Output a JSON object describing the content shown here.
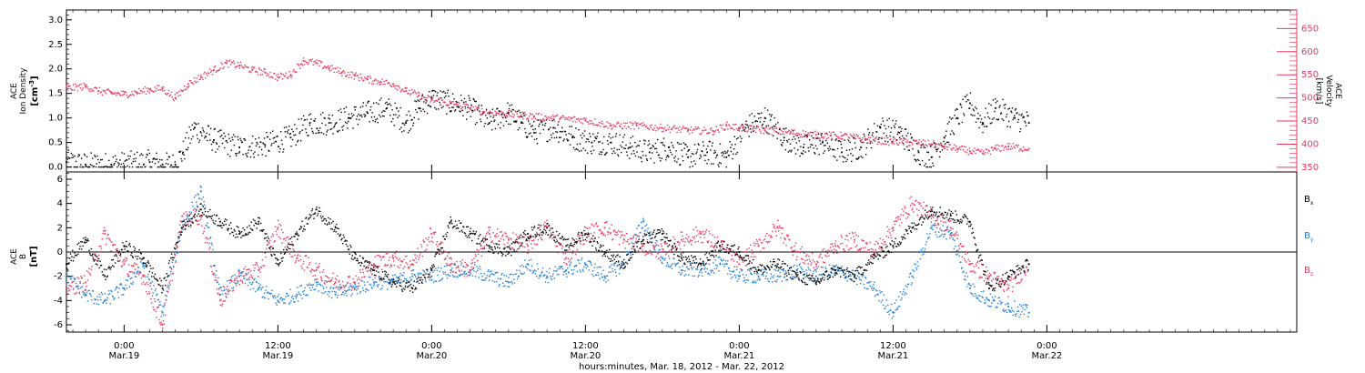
{
  "colors": {
    "axis": "#000000",
    "density": "#000000",
    "velocity": "#e8385f",
    "bx": "#000000",
    "by": "#1f7fd8",
    "bz": "#e8385f"
  },
  "footer": {
    "xlabel": "hours:minutes, Mar. 18, 2012 - Mar. 22, 2012"
  },
  "chart_data": [
    {
      "type": "scatter",
      "panel": "top",
      "x_unit": "hours since 2012-03-18 00:00",
      "xlim": [
        19.5,
        115.5
      ],
      "x_ticks": [
        {
          "x": 24,
          "time": "0:00",
          "date": "Mar.19"
        },
        {
          "x": 36,
          "time": "12:00",
          "date": "Mar.19"
        },
        {
          "x": 48,
          "time": "0:00",
          "date": "Mar.20"
        },
        {
          "x": 60,
          "time": "12:00",
          "date": "Mar.20"
        },
        {
          "x": 72,
          "time": "0:00",
          "date": "Mar.21"
        },
        {
          "x": 84,
          "time": "12:00",
          "date": "Mar.21"
        },
        {
          "x": 96,
          "time": "0:00",
          "date": "Mar.22"
        }
      ],
      "y_left": {
        "label_lines": [
          "ACE",
          "Ion Density"
        ],
        "unit_label": "[cm",
        "unit_sup": "-3",
        "unit_tail": "]",
        "ylim": [
          -0.1,
          3.2
        ],
        "ticks": [
          "0.0",
          "0.5",
          "1.0",
          "1.5",
          "2.0",
          "2.5",
          "3.0"
        ]
      },
      "y_right": {
        "label_lines": [
          "ACE",
          "Velocity",
          "[km/s]"
        ],
        "ylim": [
          340,
          690
        ],
        "ticks": [
          "350",
          "400",
          "450",
          "500",
          "550",
          "600",
          "650"
        ]
      },
      "series": [
        {
          "key": "density",
          "axis": "left",
          "x": [
            19.5,
            21,
            23,
            26,
            27,
            28,
            28.6,
            29.5,
            31,
            33,
            35,
            37,
            38.5,
            40,
            41.5,
            43,
            44.5,
            46,
            47,
            48,
            49.5,
            51,
            52.5,
            54,
            55,
            56,
            57.5,
            59,
            60.5,
            62,
            63.5,
            65,
            66.5,
            68,
            69.5,
            71,
            72.5,
            74,
            75.5,
            77,
            78.5,
            80,
            81.5,
            83,
            84.5,
            86,
            87,
            88,
            89,
            90,
            91,
            92,
            93.5,
            94.6
          ],
          "y": [
            0.1,
            0.05,
            0.05,
            0.1,
            0.05,
            0.05,
            0.3,
            0.8,
            0.55,
            0.4,
            0.45,
            0.6,
            0.9,
            0.9,
            1.0,
            1.1,
            1.2,
            0.9,
            1.2,
            1.4,
            1.3,
            1.2,
            0.9,
            1.1,
            0.9,
            0.7,
            0.8,
            0.6,
            0.5,
            0.5,
            0.4,
            0.3,
            0.4,
            0.2,
            0.3,
            0.2,
            0.8,
            1.0,
            0.6,
            0.4,
            0.5,
            0.3,
            0.4,
            0.8,
            0.7,
            0.3,
            0.2,
            0.6,
            1.0,
            1.3,
            0.9,
            1.2,
            1.0,
            0.9
          ]
        },
        {
          "key": "velocity",
          "axis": "right",
          "x": [
            19.5,
            21,
            22,
            23,
            24,
            25,
            26,
            27,
            28,
            29,
            30,
            31,
            32,
            33,
            34,
            35,
            36,
            37,
            38,
            39,
            40,
            41,
            42,
            43,
            44,
            45,
            46,
            47,
            48,
            50,
            52,
            54,
            56,
            58,
            60,
            62,
            64,
            66,
            68,
            70,
            71,
            72,
            74,
            76,
            78,
            80,
            82,
            84,
            86,
            87,
            88,
            89,
            90,
            91,
            92,
            93,
            94.6
          ],
          "y": [
            520,
            525,
            515,
            510,
            508,
            512,
            518,
            520,
            500,
            530,
            545,
            560,
            575,
            570,
            560,
            555,
            545,
            550,
            580,
            575,
            565,
            555,
            548,
            540,
            535,
            530,
            515,
            505,
            495,
            485,
            470,
            465,
            460,
            455,
            452,
            440,
            440,
            435,
            430,
            428,
            440,
            435,
            430,
            425,
            420,
            418,
            410,
            405,
            403,
            400,
            395,
            390,
            385,
            380,
            390,
            395,
            390
          ]
        }
      ]
    },
    {
      "type": "scatter",
      "panel": "bottom",
      "x_unit": "hours since 2012-03-18 00:00",
      "xlim": [
        19.5,
        115.5
      ],
      "y_left": {
        "label_lines": [
          "ACE",
          "B"
        ],
        "unit_label": "[nT]",
        "ylim": [
          -6.6,
          6.6
        ],
        "ticks": [
          "-6",
          "-4",
          "-2",
          "0",
          "2",
          "4",
          "6"
        ],
        "zero_line": true
      },
      "series": [
        {
          "key": "bx",
          "name": "B",
          "sub": "x",
          "x": [
            19.5,
            21,
            22.5,
            24,
            25.5,
            27,
            28.5,
            30,
            31.5,
            33,
            34.5,
            36,
            37.5,
            39,
            40.5,
            42,
            43.5,
            45,
            46.5,
            48,
            49.5,
            51,
            52.5,
            54,
            55.5,
            57,
            58.5,
            60,
            61.5,
            63,
            64.5,
            66,
            67.5,
            69,
            70.5,
            72,
            73.5,
            75,
            76.5,
            78,
            79.5,
            81,
            82.5,
            84,
            85.5,
            87,
            88.5,
            90,
            91.5,
            93,
            94.6
          ],
          "y": [
            -1.0,
            1.0,
            -2.0,
            0.5,
            -0.5,
            -3.0,
            2.0,
            3.5,
            2.5,
            1.5,
            2.5,
            -1.0,
            1.5,
            3.5,
            2.0,
            -0.5,
            -1.5,
            -2.5,
            -3.0,
            -1.5,
            2.5,
            1.5,
            0.5,
            0.0,
            1.5,
            2.0,
            0.5,
            1.5,
            0.0,
            -1.0,
            1.0,
            1.5,
            -0.5,
            -1.0,
            0.5,
            0.0,
            -1.5,
            -1.0,
            -2.0,
            -2.5,
            -1.5,
            -2.0,
            -0.5,
            0.5,
            2.0,
            3.5,
            3.0,
            2.5,
            -3.0,
            -2.0,
            -1.0
          ]
        },
        {
          "key": "by",
          "name": "B",
          "sub": "y",
          "x": [
            19.5,
            21,
            22.5,
            24,
            25.5,
            27,
            28.5,
            30,
            31.5,
            33,
            34.5,
            36,
            37.5,
            39,
            40.5,
            42,
            43.5,
            45,
            46.5,
            48,
            49.5,
            51,
            52.5,
            54,
            55.5,
            57,
            58.5,
            60,
            61.5,
            63,
            64.5,
            66,
            67.5,
            69,
            70.5,
            72,
            73.5,
            75,
            76.5,
            78,
            79.5,
            81,
            82.5,
            84,
            85.5,
            87,
            88.5,
            90,
            91.5,
            93,
            94.6
          ],
          "y": [
            -2.0,
            -3.5,
            -4.0,
            -3.0,
            -1.0,
            -5.0,
            2.0,
            5.0,
            -3.5,
            -2.0,
            -3.0,
            -4.0,
            -3.5,
            -2.5,
            -3.5,
            -3.0,
            -2.5,
            -2.5,
            -2.0,
            -2.0,
            -1.5,
            -1.5,
            -2.0,
            -2.5,
            -1.0,
            -2.0,
            -1.5,
            -1.0,
            -2.0,
            -1.0,
            2.5,
            -0.5,
            -1.5,
            -1.5,
            -1.0,
            -2.0,
            -2.0,
            -2.0,
            -1.5,
            -2.0,
            -1.5,
            -2.0,
            -3.0,
            -5.0,
            -2.0,
            2.0,
            1.5,
            -3.0,
            -4.0,
            -4.5,
            -5.0
          ]
        },
        {
          "key": "bz",
          "name": "B",
          "sub": "z",
          "x": [
            19.5,
            21,
            22.5,
            24,
            25.5,
            27,
            28.5,
            30,
            31.5,
            33,
            34.5,
            36,
            37.5,
            39,
            40.5,
            42,
            43.5,
            45,
            46.5,
            48,
            49.5,
            51,
            52.5,
            54,
            55.5,
            57,
            58.5,
            60,
            61.5,
            63,
            64.5,
            66,
            67.5,
            69,
            70.5,
            72,
            73.5,
            75,
            76.5,
            78,
            79.5,
            81,
            82.5,
            84,
            85.5,
            87,
            88.5,
            90,
            91.5,
            93,
            94.6
          ],
          "y": [
            -3.0,
            -2.5,
            1.5,
            -1.0,
            -2.0,
            -6.0,
            2.5,
            3.0,
            -4.0,
            -2.0,
            -1.5,
            2.0,
            -0.5,
            -1.5,
            -2.5,
            -2.5,
            -1.0,
            -0.5,
            -1.0,
            1.5,
            -1.0,
            -1.5,
            1.5,
            1.0,
            0.5,
            2.0,
            -0.5,
            1.5,
            2.0,
            1.0,
            0.5,
            0.0,
            1.0,
            1.5,
            0.5,
            -1.0,
            0.5,
            2.0,
            0.0,
            -1.0,
            0.5,
            1.0,
            0.0,
            2.0,
            4.0,
            3.0,
            2.0,
            -1.0,
            -2.0,
            -3.0,
            -1.0
          ]
        }
      ]
    }
  ]
}
